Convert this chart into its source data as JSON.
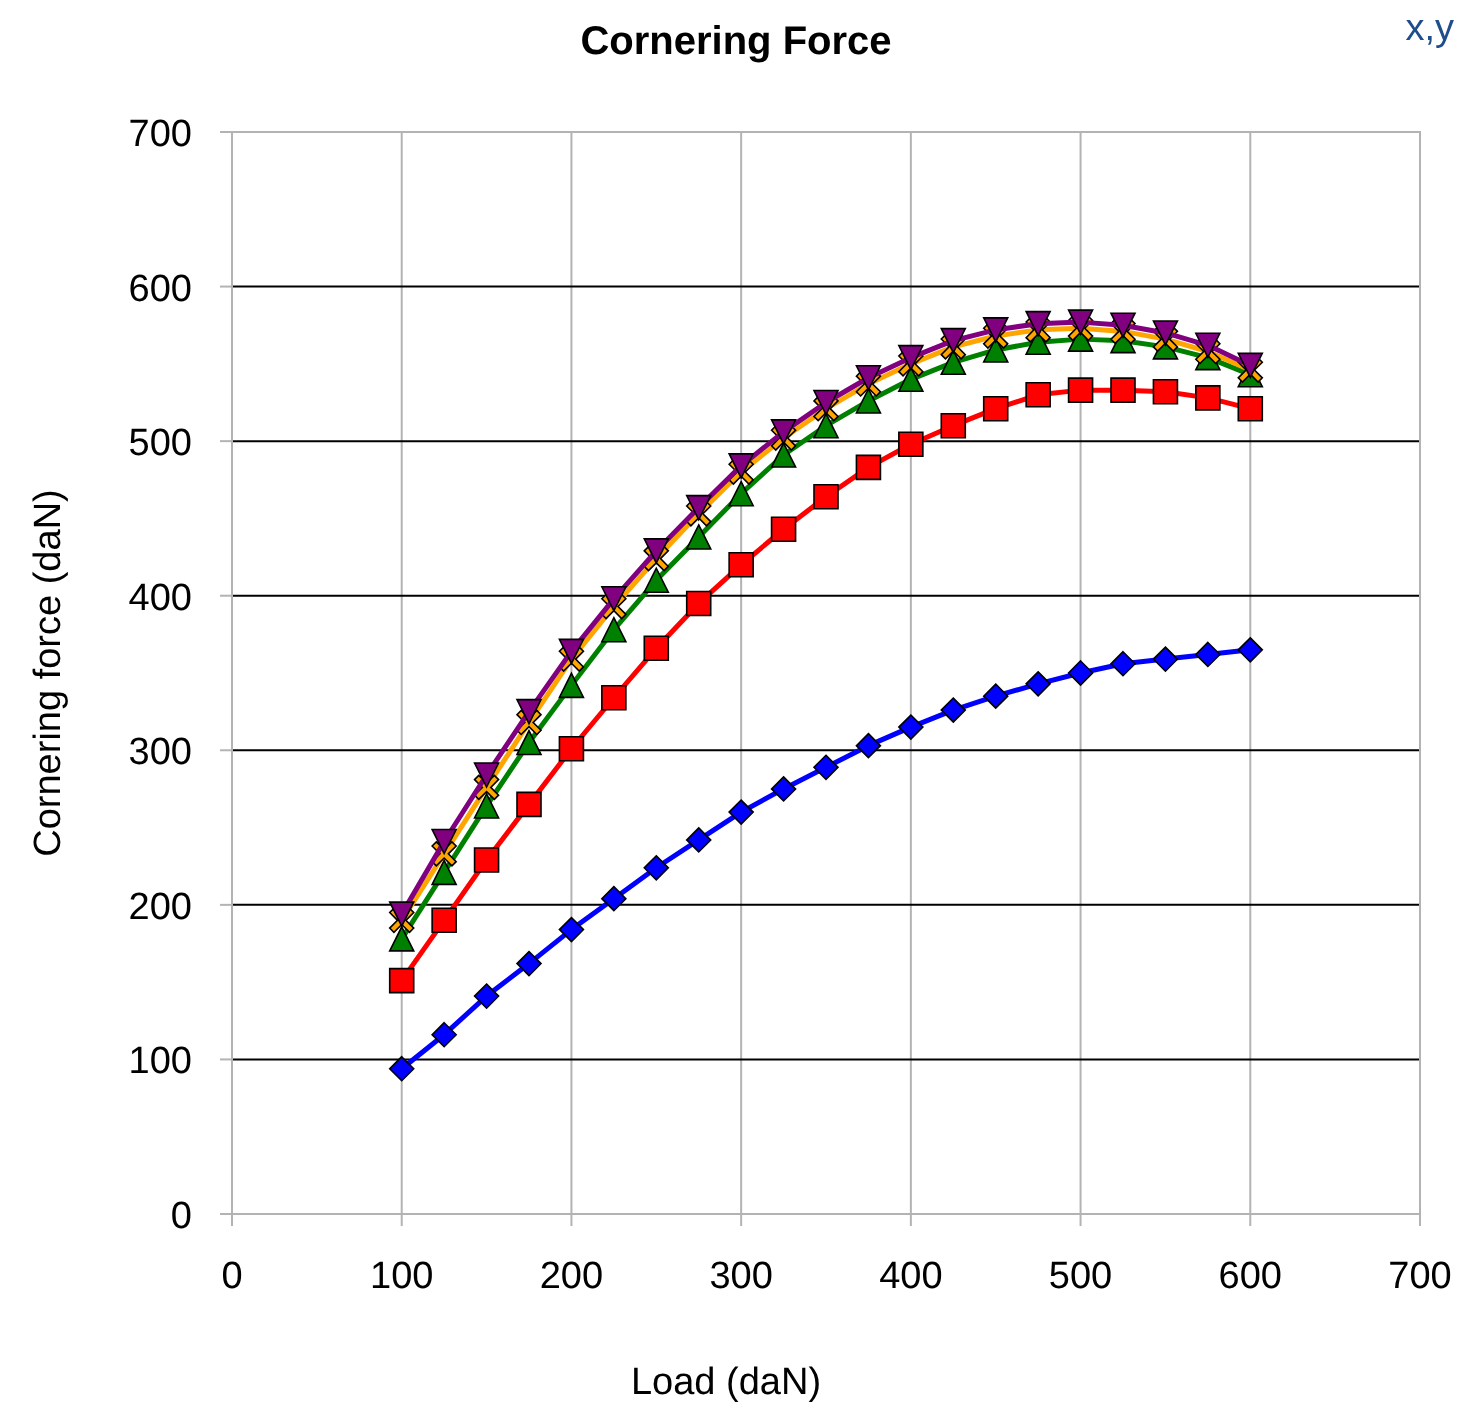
{
  "chart_data": {
    "type": "line",
    "title": "Cornering Force",
    "xlabel": "Load (daN)",
    "ylabel": "Cornering force (daN)",
    "annotations": [
      "x,y"
    ],
    "x": [
      100,
      125,
      150,
      175,
      200,
      225,
      250,
      275,
      300,
      325,
      350,
      375,
      400,
      425,
      450,
      475,
      500,
      525,
      550,
      575,
      600
    ],
    "xlim": [
      0,
      700
    ],
    "xticks": [
      0,
      100,
      200,
      300,
      400,
      500,
      600,
      700
    ],
    "ylim": [
      0,
      700
    ],
    "yticks": [
      0,
      100,
      200,
      300,
      400,
      500,
      600,
      700
    ],
    "grid": true,
    "series": [
      {
        "color": "#0000ff",
        "marker": "diamond",
        "values": [
          94,
          116,
          141,
          162,
          184,
          204,
          224,
          242,
          260,
          275,
          289,
          303,
          315,
          326,
          335,
          343,
          350,
          356,
          359,
          362,
          365
        ]
      },
      {
        "color": "#ff0000",
        "marker": "square",
        "values": [
          151,
          190,
          229,
          265,
          301,
          334,
          366,
          395,
          420,
          443,
          464,
          483,
          498,
          510,
          521,
          530,
          533,
          533,
          532,
          528,
          521
        ]
      },
      {
        "color": "#008000",
        "marker": "triangle",
        "values": [
          178,
          221,
          264,
          305,
          342,
          378,
          410,
          438,
          466,
          491,
          510,
          526,
          540,
          551,
          559,
          564,
          566,
          565,
          561,
          554,
          543
        ]
      },
      {
        "color": "#ffa500",
        "marker": "cross",
        "values": [
          190,
          233,
          276,
          318,
          359,
          393,
          424,
          453,
          480,
          502,
          521,
          537,
          550,
          561,
          568,
          572,
          573,
          571,
          566,
          558,
          546
        ]
      },
      {
        "color": "#800080",
        "marker": "triangle-down",
        "values": [
          194,
          241,
          284,
          325,
          364,
          398,
          429,
          457,
          484,
          506,
          525,
          541,
          554,
          565,
          572,
          576,
          577,
          575,
          570,
          562,
          549
        ]
      }
    ]
  }
}
